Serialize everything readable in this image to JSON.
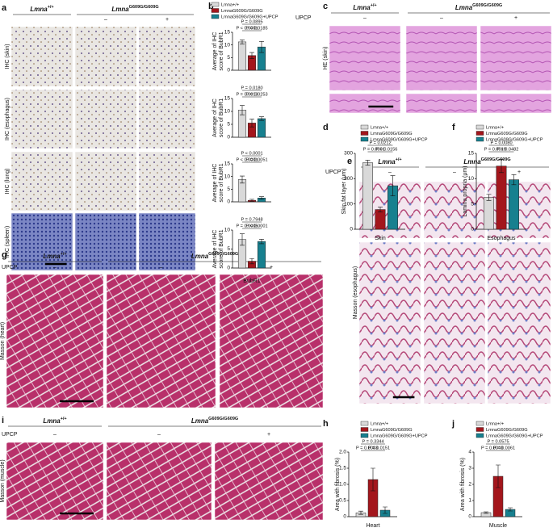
{
  "image_panels": [
    {
      "label": "a",
      "genotypes": [
        {
          "gene": "Lmna",
          "allele": "+/+"
        },
        {
          "gene": "Lmna",
          "allele": "G609G/G609G"
        }
      ],
      "conditions": [
        "–",
        "+"
      ],
      "row_labels": [
        "IHC (skin)",
        "IHC (esophagus)",
        "IHC (lung)",
        "IHC (spleen)"
      ]
    },
    {
      "label": "c",
      "genotypes": [
        {
          "gene": "Lmna",
          "allele": "+/+"
        },
        {
          "gene": "Lmna",
          "allele": "G609G/G609G"
        }
      ],
      "treatment": "UPCP",
      "conditions": [
        "–",
        "–",
        "+"
      ],
      "row_labels": [
        "HE (skin)"
      ]
    },
    {
      "label": "e",
      "genotypes": [
        {
          "gene": "Lmna",
          "allele": "+/+"
        },
        {
          "gene": "Lmna",
          "allele": "G609G/G609G"
        }
      ],
      "treatment": "UPCP",
      "conditions": [
        "–",
        "–",
        "+"
      ],
      "row_labels": [
        "Masson (esophagus)"
      ]
    },
    {
      "label": "g",
      "genotypes": [
        {
          "gene": "Lmna",
          "allele": "+/+"
        },
        {
          "gene": "Lmna",
          "allele": "G609G/G609G"
        }
      ],
      "treatment": "UPCP",
      "conditions": [
        "–",
        "–",
        "+"
      ],
      "row_labels": [
        "Masson (heart)"
      ]
    },
    {
      "label": "i",
      "genotypes": [
        {
          "gene": "Lmna",
          "allele": "+/+"
        },
        {
          "gene": "Lmna",
          "allele": "G609G/G609G"
        }
      ],
      "treatment": "UPCP",
      "conditions": [
        "–",
        "–",
        "+"
      ],
      "row_labels": [
        "Masson (muscle)"
      ]
    }
  ],
  "chart_data": [
    {
      "type": "bar",
      "label": "b",
      "ylabel": [
        "Average of IHC",
        "score of BubR1"
      ],
      "ylim": [
        0,
        15
      ],
      "yticks": [
        0,
        5,
        10,
        15
      ],
      "categories": [
        null
      ],
      "series": [
        {
          "name": "Lmna+/+",
          "color": "#d9d9d9",
          "values": [
            11.2
          ],
          "errors": [
            0.8
          ]
        },
        {
          "name": "LmnaG609G/G609G",
          "color": "#a3161c",
          "values": [
            5.8
          ],
          "errors": [
            1.2
          ]
        },
        {
          "name": "LmnaG609G/G609G+UPCP",
          "color": "#17808f",
          "values": [
            9.2
          ],
          "errors": [
            2.2
          ]
        }
      ],
      "annotations": [
        "P = 0.0895",
        "P < 0.0001",
        "P = 0.0185"
      ]
    },
    {
      "type": "bar",
      "ylabel": [
        "Average of IHC",
        "score of BubR1"
      ],
      "ylim": [
        0,
        15
      ],
      "yticks": [
        0,
        5,
        10,
        15
      ],
      "categories": [
        null
      ],
      "series": [
        {
          "color": "#d9d9d9",
          "values": [
            10.5
          ],
          "errors": [
            1.8
          ]
        },
        {
          "color": "#a3161c",
          "values": [
            5.5
          ],
          "errors": [
            1.5
          ]
        },
        {
          "color": "#17808f",
          "values": [
            7.2
          ],
          "errors": [
            0.7
          ]
        }
      ],
      "annotations": [
        "P = 0.0180",
        "P = 0.0013",
        "P = 0.0253"
      ]
    },
    {
      "type": "bar",
      "ylabel": [
        "Average of IHC",
        "score of BubR1"
      ],
      "ylim": [
        0,
        15
      ],
      "yticks": [
        0,
        5,
        10,
        15
      ],
      "categories": [
        null
      ],
      "series": [
        {
          "color": "#d9d9d9",
          "values": [
            8.8
          ],
          "errors": [
            1.4
          ]
        },
        {
          "color": "#a3161c",
          "values": [
            0.6
          ],
          "errors": [
            0.4
          ]
        },
        {
          "color": "#17808f",
          "values": [
            1.5
          ],
          "errors": [
            0.5
          ]
        }
      ],
      "annotations": [
        "P < 0.0001",
        "P < 0.0001",
        "P = 0.0051"
      ]
    },
    {
      "type": "bar",
      "ylabel": [
        "Average of IHC",
        "score of BubR1"
      ],
      "xlabel": "BubR1",
      "ylim": [
        0,
        10
      ],
      "yticks": [
        0,
        5,
        10
      ],
      "categories": [
        null
      ],
      "series": [
        {
          "color": "#d9d9d9",
          "values": [
            7.5
          ],
          "errors": [
            1.5
          ]
        },
        {
          "color": "#a3161c",
          "values": [
            1.8
          ],
          "errors": [
            0.7
          ]
        },
        {
          "color": "#17808f",
          "values": [
            7.0
          ],
          "errors": [
            0.6
          ]
        }
      ],
      "annotations": [
        "P = 0.7948",
        "P = 0.0005",
        "P < 0.0001"
      ]
    },
    {
      "type": "bar",
      "label": "d",
      "ylabel": [
        "Skin fat layer (μm)"
      ],
      "xlabel": "Skin",
      "ylim": [
        0,
        300
      ],
      "yticks": [
        0,
        100,
        200,
        300
      ],
      "categories": [
        null
      ],
      "series": [
        {
          "name": "Lmna+/+",
          "color": "#d9d9d9",
          "values": [
            263
          ],
          "errors": [
            10
          ]
        },
        {
          "name": "LmnaG609G/G609G",
          "color": "#a3161c",
          "values": [
            78
          ],
          "errors": [
            10
          ]
        },
        {
          "name": "LmnaG609G/G609G+UPCP",
          "color": "#17808f",
          "values": [
            172
          ],
          "errors": [
            40
          ]
        }
      ],
      "annotations": [
        "P = 0.0212",
        "P = 0.0001",
        "P = 0.0156"
      ]
    },
    {
      "type": "bar",
      "label": "f",
      "ylabel": [
        "Lamina propria (μm)"
      ],
      "xlabel": "Esophagus",
      "ylim": [
        0,
        15
      ],
      "yticks": [
        0,
        5,
        10,
        15
      ],
      "categories": [
        null
      ],
      "series": [
        {
          "name": "Lmna+/+",
          "color": "#d9d9d9",
          "values": [
            6.3
          ],
          "errors": [
            0.6
          ]
        },
        {
          "name": "LmnaG609G/G609G",
          "color": "#a3161c",
          "values": [
            12.5
          ],
          "errors": [
            1.3
          ]
        },
        {
          "name": "LmnaG609G/G609G+UPCP",
          "color": "#17808f",
          "values": [
            9.8
          ],
          "errors": [
            1.0
          ]
        }
      ],
      "annotations": [
        "P = 0.0080",
        "P = 0.0019",
        "P = 0.0482"
      ]
    },
    {
      "type": "bar",
      "label": "h",
      "ylabel": [
        "Area with fibrosis (%)"
      ],
      "xlabel": "Heart",
      "ylim": [
        0,
        2
      ],
      "yticks": [
        0,
        0.5,
        {
          "value": 1,
          "label": "1.0"
        },
        1.5,
        {
          "value": 2,
          "label": "2.0"
        }
      ],
      "categories": [
        null
      ],
      "series": [
        {
          "name": "Lmna+/+",
          "color": "#d9d9d9",
          "values": [
            0.12
          ],
          "errors": [
            0.05
          ]
        },
        {
          "name": "LmnaG609G/G609G",
          "color": "#a3161c",
          "values": [
            1.15
          ],
          "errors": [
            0.35
          ]
        },
        {
          "name": "LmnaG609G/G609G+UPCP",
          "color": "#17808f",
          "values": [
            0.2
          ],
          "errors": [
            0.1
          ]
        }
      ],
      "annotations": [
        "P = 0.3344",
        "P = 0.0093",
        "P = 0.0151"
      ]
    },
    {
      "type": "bar",
      "label": "j",
      "ylabel": [
        "Area with fibrosis (%)"
      ],
      "xlabel": "Muscle",
      "ylim": [
        0,
        4
      ],
      "yticks": [
        0,
        1,
        2,
        3,
        4
      ],
      "categories": [
        null
      ],
      "series": [
        {
          "name": "Lmna+/+",
          "color": "#d9d9d9",
          "values": [
            0.25
          ],
          "errors": [
            0.05
          ]
        },
        {
          "name": "LmnaG609G/G609G",
          "color": "#a3161c",
          "values": [
            2.5
          ],
          "errors": [
            0.7
          ]
        },
        {
          "name": "LmnaG609G/G609G+UPCP",
          "color": "#17808f",
          "values": [
            0.45
          ],
          "errors": [
            0.1
          ]
        }
      ],
      "annotations": [
        "P = 0.0575",
        "P = 0.0040",
        "P = 0.0061"
      ]
    }
  ]
}
